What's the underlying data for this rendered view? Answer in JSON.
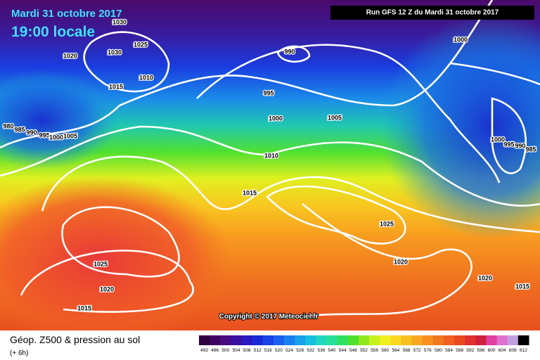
{
  "header": {
    "date": "Mardi 31 octobre 2017",
    "time": "19:00 locale",
    "run": "Run GFS 12 Z du Mardi 31 octobre 2017"
  },
  "isobar_labels": [
    1030,
    1025,
    1020,
    1030,
    990,
    1000,
    1015,
    1010,
    995,
    1000,
    1005,
    980,
    985,
    990,
    995,
    1000,
    1005,
    1000,
    995,
    990,
    985,
    1010,
    1015,
    1025,
    1020,
    1025,
    1020,
    1015,
    1020,
    1015
  ],
  "copyright": "Copyright © 2017 Meteociel.fr",
  "legend": {
    "title": "Géop. Z500 & pression au sol",
    "step": "(+ 6h)",
    "scale": [
      492,
      496,
      500,
      504,
      508,
      512,
      516,
      520,
      524,
      528,
      532,
      536,
      540,
      544,
      548,
      552,
      556,
      560,
      564,
      568,
      572,
      576,
      580,
      584,
      588,
      592,
      596,
      600,
      604,
      608,
      612
    ]
  }
}
